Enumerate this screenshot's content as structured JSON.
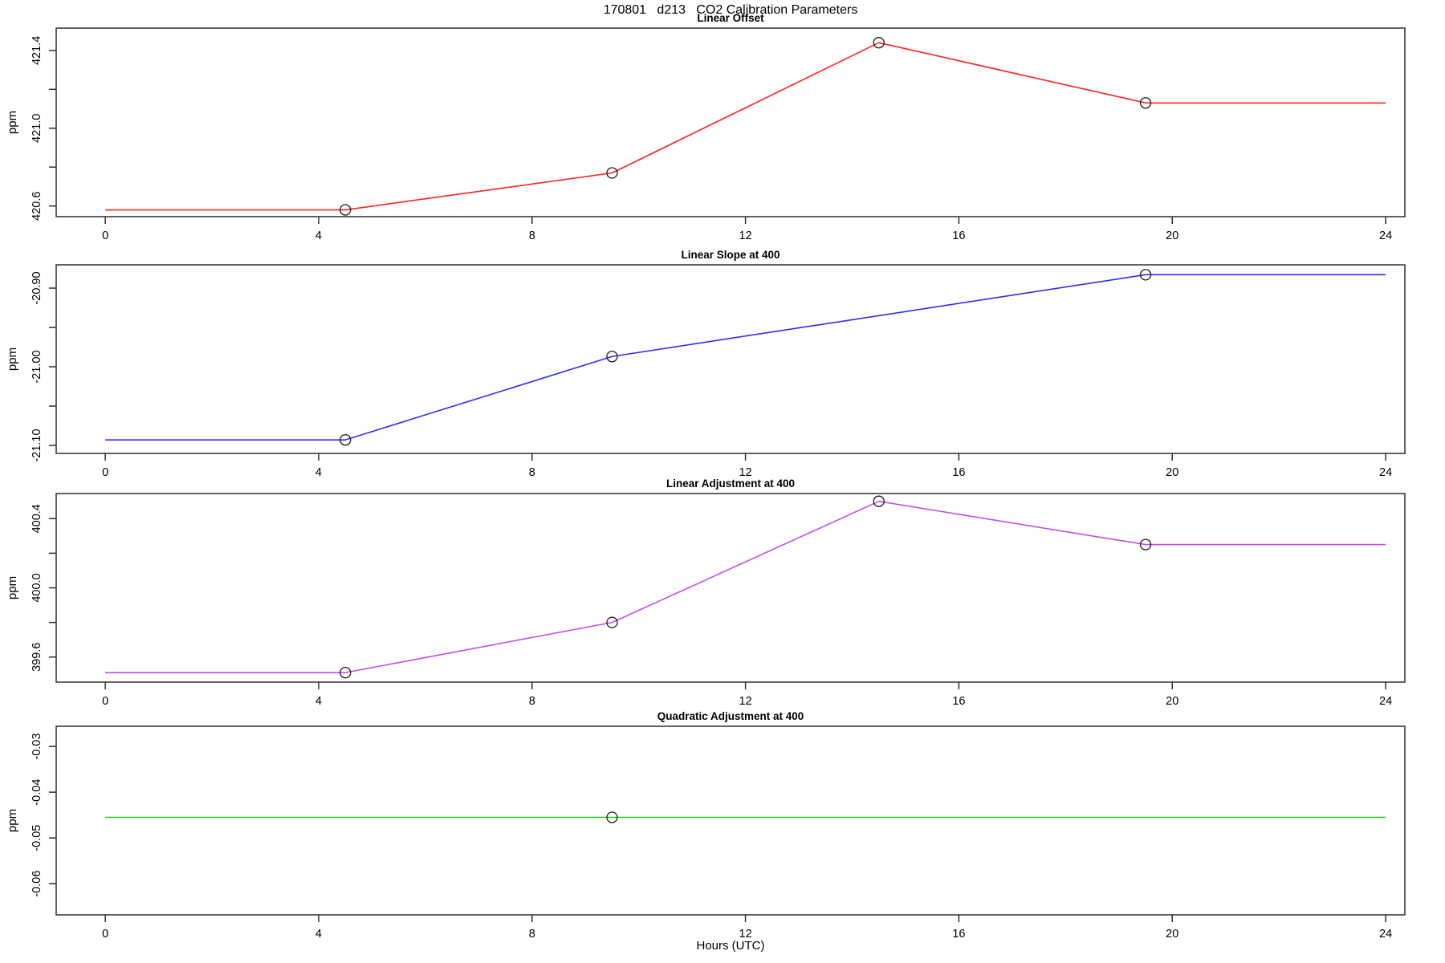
{
  "title": "170801   d213   CO2 Calibration Parameters",
  "xlabel": "Hours (UTC)",
  "chart_data": {
    "type": "line",
    "layout_hint": "4 stacked panels, shared x axis 0-24 hours, open circle markers at calibration points, no grid, R base-graphics style",
    "x_axis": {
      "label": "Hours (UTC)",
      "ticks": [
        0,
        4,
        8,
        12,
        16,
        20,
        24
      ],
      "xlim": [
        -0.92,
        24.36
      ]
    },
    "panels": [
      {
        "title": "Linear Offset",
        "ylabel": "ppm",
        "color": "#ff2020",
        "ylim": [
          420.545,
          421.515
        ],
        "yticks": [
          {
            "v": 420.6,
            "label": "420.6"
          },
          {
            "v": 421.0,
            "label": "421.0"
          },
          {
            "v": 421.4,
            "label": "421.4"
          }
        ],
        "yticks_minor": [
          420.8,
          421.2
        ],
        "x": [
          0,
          4.5,
          9.5,
          14.5,
          19.5,
          24
        ],
        "y": [
          420.58,
          420.58,
          420.77,
          421.44,
          421.13,
          421.13
        ],
        "markers": [
          {
            "x": 4.5,
            "y": 420.58
          },
          {
            "x": 9.5,
            "y": 420.77
          },
          {
            "x": 14.5,
            "y": 421.44
          },
          {
            "x": 19.5,
            "y": 421.13
          }
        ]
      },
      {
        "title": "Linear Slope at 400",
        "ylabel": "ppm",
        "color": "#2d2dff",
        "ylim": [
          -21.1102,
          -20.8704
        ],
        "yticks": [
          {
            "v": -21.1,
            "label": "-21.10"
          },
          {
            "v": -21.0,
            "label": "-21.00"
          },
          {
            "v": -20.9,
            "label": "-20.90"
          }
        ],
        "yticks_minor": [
          -21.05,
          -20.95
        ],
        "x": [
          0,
          4.5,
          9.5,
          19.5,
          24
        ],
        "y": [
          -21.093,
          -21.093,
          -20.987,
          -20.883,
          -20.883
        ],
        "markers": [
          {
            "x": 4.5,
            "y": -21.093
          },
          {
            "x": 9.5,
            "y": -20.987
          },
          {
            "x": 19.5,
            "y": -20.883
          }
        ]
      },
      {
        "title": "Linear Adjustment at 400",
        "ylabel": "ppm",
        "color": "#bf4fe8",
        "ylim": [
          399.455,
          400.545
        ],
        "yticks": [
          {
            "v": 399.6,
            "label": "399.6"
          },
          {
            "v": 400.0,
            "label": "400.0"
          },
          {
            "v": 400.4,
            "label": "400.4"
          }
        ],
        "yticks_minor": [
          399.8,
          400.2
        ],
        "x": [
          0,
          4.5,
          9.5,
          14.5,
          19.5,
          24
        ],
        "y": [
          399.51,
          399.51,
          399.8,
          400.5,
          400.25,
          400.25
        ],
        "markers": [
          {
            "x": 4.5,
            "y": 399.51
          },
          {
            "x": 9.5,
            "y": 399.8
          },
          {
            "x": 14.5,
            "y": 400.5
          },
          {
            "x": 19.5,
            "y": 400.25
          }
        ]
      },
      {
        "title": "Quadratic Adjustment at 400",
        "ylabel": "ppm",
        "color": "#1fce1f",
        "ylim": [
          -0.0668,
          -0.0256
        ],
        "yticks": [
          {
            "v": -0.06,
            "label": "-0.06"
          },
          {
            "v": -0.05,
            "label": "-0.05"
          },
          {
            "v": -0.04,
            "label": "-0.04"
          },
          {
            "v": -0.03,
            "label": "-0.03"
          }
        ],
        "yticks_minor": [],
        "x": [
          0,
          24
        ],
        "y": [
          -0.0455,
          -0.0455
        ],
        "markers": [
          {
            "x": 9.5,
            "y": -0.0455
          }
        ]
      }
    ]
  }
}
